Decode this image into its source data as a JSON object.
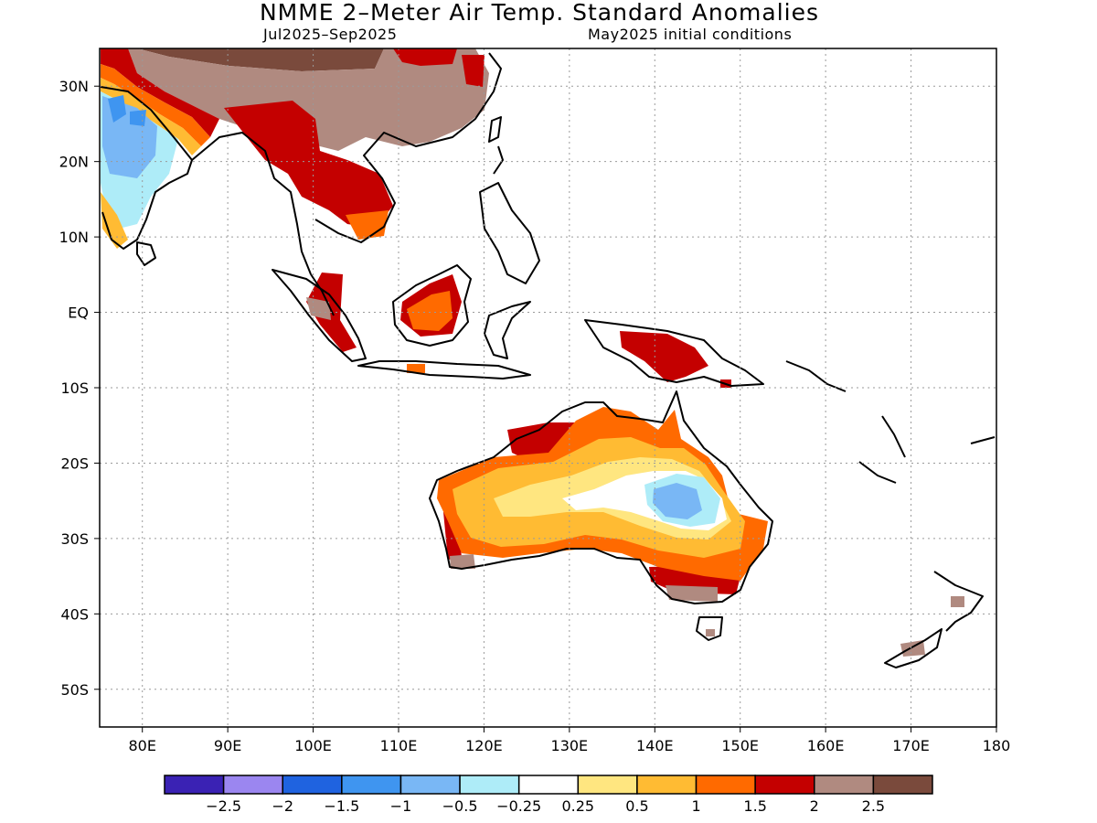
{
  "header": {
    "title": "NMME 2–Meter Air Temp. Standard Anomalies",
    "period": "Jul2025–Sep2025",
    "initial_conditions": "May2025 initial conditions"
  },
  "map": {
    "lon_range": [
      75,
      180
    ],
    "lat_range": [
      -55,
      35
    ],
    "lat_ticks": [
      {
        "value": 30,
        "label": "30N"
      },
      {
        "value": 20,
        "label": "20N"
      },
      {
        "value": 10,
        "label": "10N"
      },
      {
        "value": 0,
        "label": "EQ"
      },
      {
        "value": -10,
        "label": "10S"
      },
      {
        "value": -20,
        "label": "20S"
      },
      {
        "value": -30,
        "label": "30S"
      },
      {
        "value": -40,
        "label": "40S"
      },
      {
        "value": -50,
        "label": "50S"
      }
    ],
    "lon_ticks": [
      {
        "value": 80,
        "label": "80E"
      },
      {
        "value": 90,
        "label": "90E"
      },
      {
        "value": 100,
        "label": "100E"
      },
      {
        "value": 110,
        "label": "110E"
      },
      {
        "value": 120,
        "label": "120E"
      },
      {
        "value": 130,
        "label": "130E"
      },
      {
        "value": 140,
        "label": "140E"
      },
      {
        "value": 150,
        "label": "150E"
      },
      {
        "value": 160,
        "label": "160E"
      },
      {
        "value": 170,
        "label": "170E"
      },
      {
        "value": 180,
        "label": "180"
      }
    ],
    "grid": "dotted"
  },
  "legend": {
    "colors": [
      "#3a22b4",
      "#9b86f0",
      "#1f63e0",
      "#3f95f0",
      "#79b7f5",
      "#aeecf8",
      "#ffffff",
      "#ffe680",
      "#ffbb33",
      "#ff6a00",
      "#c40000",
      "#b08a80",
      "#7a4a3c"
    ],
    "labels": [
      "−2.5",
      "−2",
      "−1.5",
      "−1",
      "−0.5",
      "−0.25",
      "0.25",
      "0.5",
      "1",
      "1.5",
      "2",
      "2.5"
    ]
  }
}
